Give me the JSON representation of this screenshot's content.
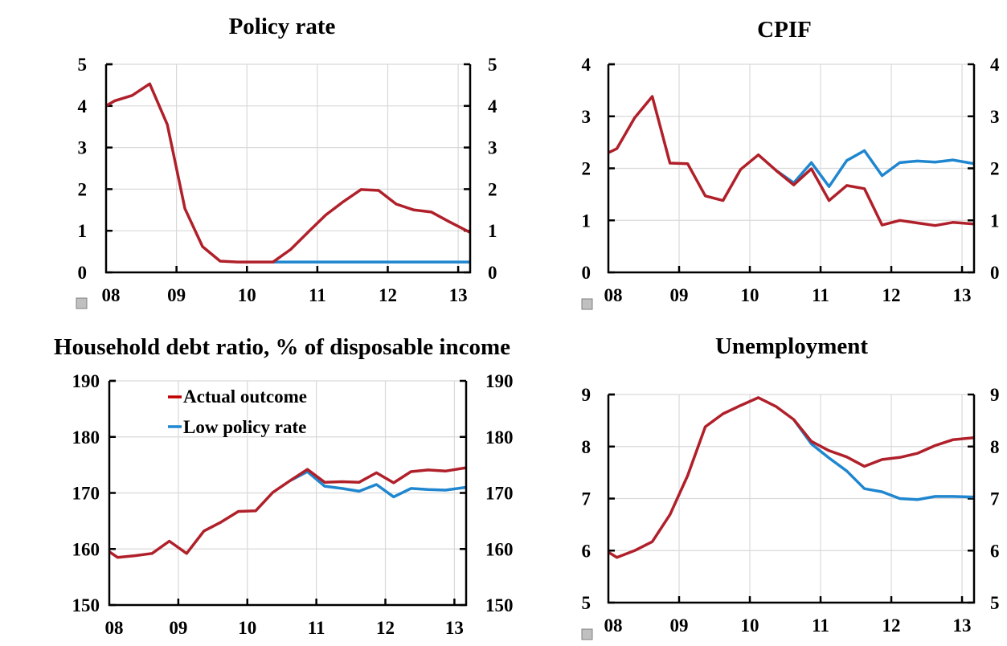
{
  "colors": {
    "actual": "#b0202a",
    "low_rate": "#1f86cf",
    "grid": "#d9d9d9",
    "marker": "#c0c0c0"
  },
  "legend": {
    "actual_label": "Actual outcome",
    "low_label": "Low policy rate"
  },
  "chart_data": [
    {
      "type": "line",
      "title": "Policy rate",
      "xlabel": "",
      "ylabel": "",
      "x_ticks": [
        "08",
        "09",
        "10",
        "11",
        "12",
        "13"
      ],
      "xlim": [
        2008.0,
        2013.17
      ],
      "ylim": [
        0,
        5
      ],
      "y_ticks": [
        0,
        1,
        2,
        3,
        4,
        5
      ],
      "grid": true,
      "legend": null,
      "series": [
        {
          "name": "Actual outcome",
          "color_key": "actual",
          "x": [
            2008.0,
            2008.12,
            2008.37,
            2008.62,
            2008.87,
            2009.12,
            2009.37,
            2009.62,
            2009.87,
            2010.12,
            2010.37,
            2010.62,
            2010.87,
            2011.12,
            2011.37,
            2011.62,
            2011.87,
            2012.12,
            2012.37,
            2012.62,
            2012.87,
            2013.17
          ],
          "y": [
            4.0,
            4.12,
            4.25,
            4.53,
            3.55,
            1.53,
            0.62,
            0.27,
            0.25,
            0.25,
            0.25,
            0.55,
            0.97,
            1.38,
            1.7,
            1.99,
            1.97,
            1.64,
            1.5,
            1.45,
            1.22,
            0.96
          ]
        },
        {
          "name": "Low policy rate",
          "color_key": "low_rate",
          "x": [
            2010.37,
            2013.17
          ],
          "y": [
            0.25,
            0.25
          ]
        }
      ]
    },
    {
      "type": "line",
      "title": "CPIF",
      "xlabel": "",
      "ylabel": "",
      "x_ticks": [
        "08",
        "09",
        "10",
        "11",
        "12",
        "13"
      ],
      "xlim": [
        2008.0,
        2013.17
      ],
      "ylim": [
        0,
        4
      ],
      "y_ticks": [
        0,
        1,
        2,
        3,
        4
      ],
      "grid": true,
      "legend": null,
      "series": [
        {
          "name": "Actual outcome",
          "color_key": "actual",
          "x": [
            2008.0,
            2008.12,
            2008.37,
            2008.62,
            2008.87,
            2009.12,
            2009.37,
            2009.62,
            2009.87,
            2010.12,
            2010.37,
            2010.62,
            2010.87,
            2011.12,
            2011.37,
            2011.62,
            2011.87,
            2012.12,
            2012.37,
            2012.62,
            2012.87,
            2013.17
          ],
          "y": [
            2.3,
            2.38,
            2.97,
            3.38,
            2.1,
            2.09,
            1.47,
            1.38,
            1.98,
            2.26,
            1.96,
            1.68,
            1.99,
            1.38,
            1.67,
            1.61,
            0.91,
            1.0,
            0.95,
            0.9,
            0.96,
            0.93
          ]
        },
        {
          "name": "Low policy rate",
          "color_key": "low_rate",
          "x": [
            2010.37,
            2010.62,
            2010.87,
            2011.12,
            2011.37,
            2011.62,
            2011.87,
            2012.12,
            2012.37,
            2012.62,
            2012.87,
            2013.17
          ],
          "y": [
            1.96,
            1.72,
            2.11,
            1.65,
            2.15,
            2.34,
            1.86,
            2.11,
            2.14,
            2.12,
            2.16,
            2.09
          ]
        }
      ]
    },
    {
      "type": "line",
      "title": "Household debt ratio, % of disposable income",
      "xlabel": "",
      "ylabel": "",
      "x_ticks": [
        "08",
        "09",
        "10",
        "11",
        "12",
        "13"
      ],
      "xlim": [
        2008.0,
        2013.17
      ],
      "ylim": [
        150,
        190
      ],
      "y_ticks": [
        150,
        160,
        170,
        180,
        190
      ],
      "grid": true,
      "legend": "top-left",
      "series": [
        {
          "name": "Actual outcome",
          "color_key": "actual",
          "x": [
            2008.0,
            2008.12,
            2008.37,
            2008.62,
            2008.87,
            2009.12,
            2009.37,
            2009.62,
            2009.87,
            2010.12,
            2010.37,
            2010.62,
            2010.87,
            2011.12,
            2011.37,
            2011.62,
            2011.87,
            2012.12,
            2012.37,
            2012.62,
            2012.87,
            2013.17
          ],
          "y": [
            159.5,
            158.5,
            158.8,
            159.2,
            161.4,
            159.2,
            163.2,
            164.8,
            166.7,
            166.8,
            170.1,
            172.2,
            174.2,
            171.9,
            172.0,
            171.9,
            173.6,
            171.8,
            173.8,
            174.1,
            173.9,
            174.5
          ]
        },
        {
          "name": "Low policy rate",
          "color_key": "low_rate",
          "x": [
            2010.62,
            2010.87,
            2011.12,
            2011.37,
            2011.62,
            2011.87,
            2012.12,
            2012.37,
            2012.62,
            2012.87,
            2013.17
          ],
          "y": [
            172.2,
            173.8,
            171.2,
            170.8,
            170.3,
            171.5,
            169.3,
            170.8,
            170.6,
            170.5,
            171.0
          ]
        }
      ]
    },
    {
      "type": "line",
      "title": "Unemployment",
      "xlabel": "",
      "ylabel": "",
      "x_ticks": [
        "08",
        "09",
        "10",
        "11",
        "12",
        "13"
      ],
      "xlim": [
        2008.0,
        2013.17
      ],
      "ylim": [
        5,
        9
      ],
      "y_ticks": [
        5,
        6,
        7,
        8,
        9
      ],
      "grid": true,
      "legend": null,
      "series": [
        {
          "name": "Actual outcome",
          "color_key": "actual",
          "x": [
            2008.0,
            2008.12,
            2008.37,
            2008.62,
            2008.87,
            2009.12,
            2009.37,
            2009.62,
            2009.87,
            2010.12,
            2010.37,
            2010.62,
            2010.87,
            2011.12,
            2011.37,
            2011.62,
            2011.87,
            2012.12,
            2012.37,
            2012.62,
            2012.87,
            2013.17
          ],
          "y": [
            5.97,
            5.87,
            6.0,
            6.17,
            6.69,
            7.44,
            8.38,
            8.63,
            8.79,
            8.94,
            8.77,
            8.52,
            8.1,
            7.92,
            7.8,
            7.62,
            7.75,
            7.79,
            7.87,
            8.02,
            8.13,
            8.17
          ]
        },
        {
          "name": "Low policy rate",
          "color_key": "low_rate",
          "x": [
            2010.62,
            2010.87,
            2011.12,
            2011.37,
            2011.62,
            2011.87,
            2012.12,
            2012.37,
            2012.62,
            2012.87,
            2013.17
          ],
          "y": [
            8.52,
            8.05,
            7.78,
            7.53,
            7.19,
            7.13,
            7.0,
            6.98,
            7.04,
            7.04,
            7.03
          ]
        }
      ]
    }
  ]
}
